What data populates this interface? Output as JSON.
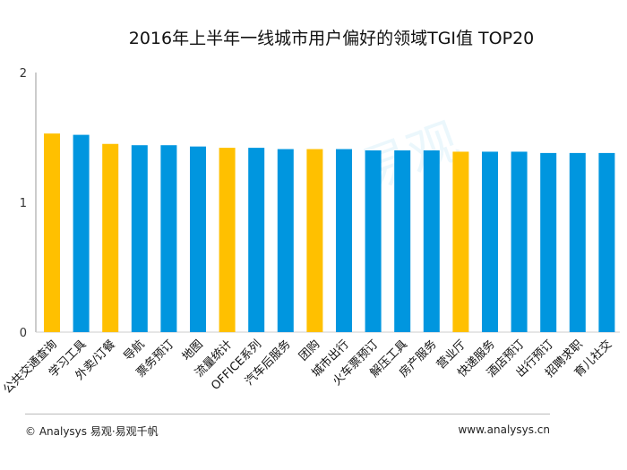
{
  "chart_data": {
    "type": "bar",
    "title": "2016年上半年一线城市用户偏好的领域TGI值 TOP20",
    "categories": [
      "公共交通查询",
      "学习工具",
      "外卖/订餐",
      "导航",
      "票务预订",
      "地图",
      "流量统计",
      "OFFICE系列",
      "汽车后服务",
      "团购",
      "城市出行",
      "火车票预订",
      "解压工具",
      "房产服务",
      "营业厅",
      "快递服务",
      "酒店预订",
      "出行预订",
      "招聘求职",
      "育儿社交"
    ],
    "values": [
      1.53,
      1.52,
      1.45,
      1.44,
      1.44,
      1.43,
      1.42,
      1.42,
      1.41,
      1.41,
      1.41,
      1.4,
      1.4,
      1.4,
      1.39,
      1.39,
      1.39,
      1.38,
      1.38,
      1.38
    ],
    "highlighted": [
      0,
      2,
      6,
      9,
      14
    ],
    "colors": {
      "default": "#0096df",
      "highlight": "#ffc000"
    },
    "ylim": [
      0,
      2
    ],
    "yticks": [
      "0",
      "1",
      "2"
    ],
    "grid": false
  },
  "watermark": "易观",
  "footer": {
    "left": "© Analysys 易观·易观千帆",
    "right": "www.analysys.cn"
  }
}
